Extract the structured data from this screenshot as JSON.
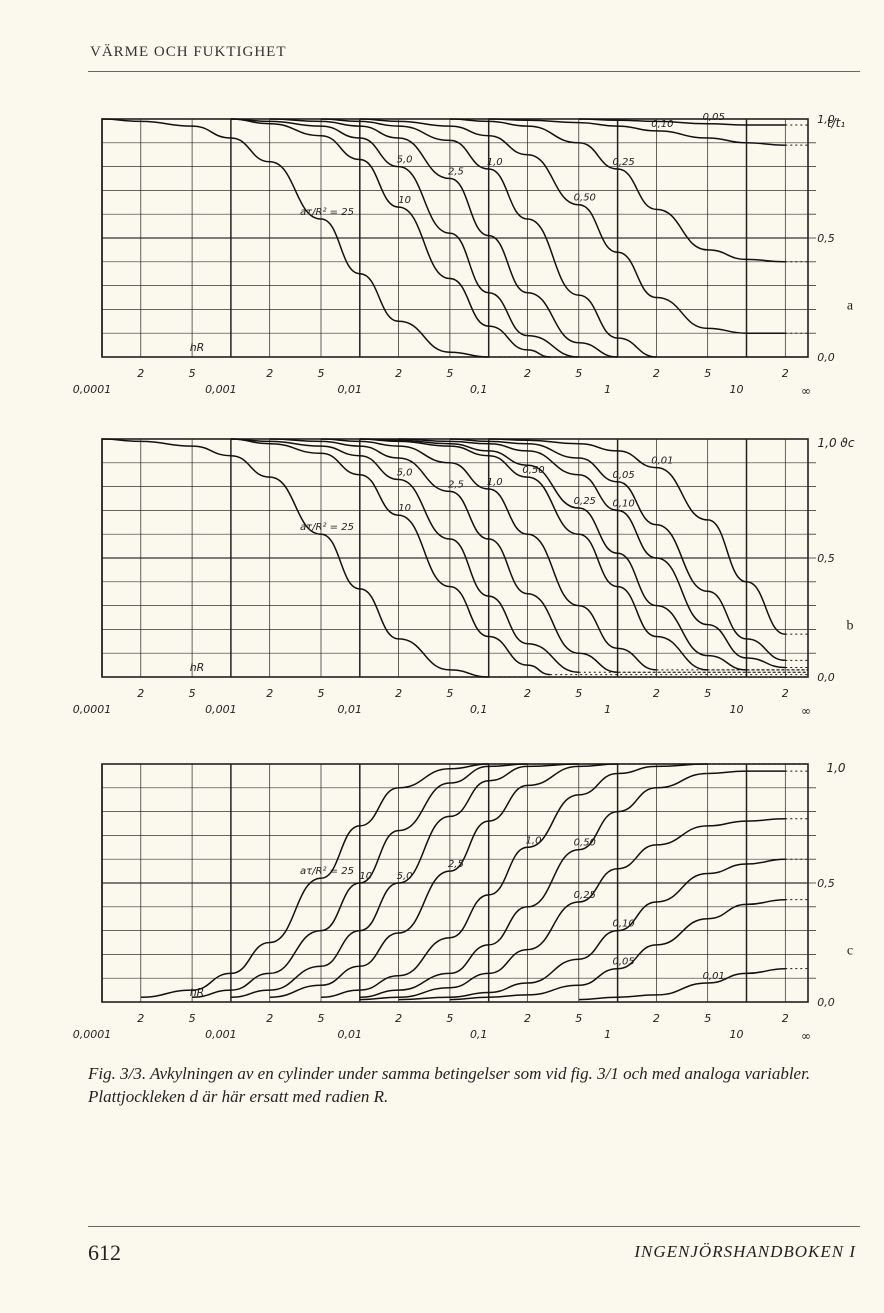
{
  "header": {
    "section": "VÄRME OCH FUKTIGHET"
  },
  "chart_data": [
    {
      "type": "line",
      "panel_label": "a",
      "y_axis_label": "t/t₁",
      "x_corner_label": "∞",
      "corner_label": "hR",
      "x_scale": "log",
      "x_decade_labels": [
        "0,0001",
        "0,001",
        "0,01",
        "0,1",
        "1",
        "10"
      ],
      "x_minor_labels": [
        "2",
        "5"
      ],
      "y_ticks": [
        "1,0",
        "0,5",
        "0,0"
      ],
      "ylim": [
        0,
        1
      ],
      "series": [
        {
          "name": "aτ/R² = 25",
          "label": "aτ/R² = 25",
          "x": [
            0.0001,
            0.0002,
            0.0005,
            0.001,
            0.002,
            0.005,
            0.01,
            0.02,
            0.05,
            0.1
          ],
          "values": [
            1.0,
            0.99,
            0.97,
            0.92,
            0.82,
            0.58,
            0.35,
            0.15,
            0.02,
            0.0
          ]
        },
        {
          "name": "10",
          "label": "10",
          "x": [
            0.001,
            0.002,
            0.005,
            0.01,
            0.02,
            0.05,
            0.1,
            0.2,
            0.3
          ],
          "values": [
            1.0,
            0.98,
            0.93,
            0.83,
            0.63,
            0.33,
            0.13,
            0.03,
            0.0
          ]
        },
        {
          "name": "5,0",
          "label": "5,0",
          "x": [
            0.001,
            0.002,
            0.005,
            0.01,
            0.02,
            0.05,
            0.1,
            0.2,
            0.5
          ],
          "values": [
            1.0,
            0.99,
            0.97,
            0.92,
            0.8,
            0.52,
            0.27,
            0.09,
            0.0
          ]
        },
        {
          "name": "2,5",
          "label": "2,5",
          "x": [
            0.002,
            0.005,
            0.01,
            0.02,
            0.05,
            0.1,
            0.2,
            0.5,
            1
          ],
          "values": [
            1.0,
            0.99,
            0.97,
            0.92,
            0.75,
            0.51,
            0.27,
            0.06,
            0.0
          ]
        },
        {
          "name": "1,0",
          "label": "1,0",
          "x": [
            0.005,
            0.01,
            0.02,
            0.05,
            0.1,
            0.2,
            0.5,
            1,
            2
          ],
          "values": [
            1.0,
            0.99,
            0.97,
            0.91,
            0.79,
            0.58,
            0.26,
            0.08,
            0.0
          ]
        },
        {
          "name": "0,50",
          "label": "0,50",
          "x": [
            0.01,
            0.02,
            0.05,
            0.1,
            0.2,
            0.5,
            1,
            2,
            5,
            10,
            20
          ],
          "values": [
            1.0,
            0.99,
            0.97,
            0.93,
            0.85,
            0.64,
            0.44,
            0.25,
            0.12,
            0.1,
            0.1
          ]
        },
        {
          "name": "0,25",
          "label": "0,25",
          "x": [
            0.05,
            0.1,
            0.2,
            0.5,
            1,
            2,
            5,
            10,
            20
          ],
          "values": [
            1.0,
            0.99,
            0.97,
            0.9,
            0.79,
            0.62,
            0.45,
            0.41,
            0.4
          ]
        },
        {
          "name": "0,10",
          "label": "0,10",
          "x": [
            0.1,
            0.2,
            0.5,
            1,
            2,
            5,
            10,
            20
          ],
          "values": [
            1.0,
            0.995,
            0.985,
            0.97,
            0.95,
            0.92,
            0.9,
            0.89
          ]
        },
        {
          "name": "0,05",
          "label": "0,05",
          "x": [
            0.5,
            1,
            2,
            5,
            10,
            20
          ],
          "values": [
            1.0,
            0.995,
            0.99,
            0.98,
            0.975,
            0.975
          ]
        }
      ]
    },
    {
      "type": "line",
      "panel_label": "b",
      "y_axis_label": "1,0 ϑc",
      "x_corner_label": "∞",
      "corner_label": "hR",
      "x_scale": "log",
      "x_decade_labels": [
        "0,0001",
        "0,001",
        "0,01",
        "0,1",
        "1",
        "10"
      ],
      "x_minor_labels": [
        "2",
        "5"
      ],
      "y_ticks": [
        "0,5",
        "0,0"
      ],
      "ylim": [
        0,
        1
      ],
      "series": [
        {
          "name": "aτ/R² = 25",
          "label": "aτ/R² = 25",
          "x": [
            0.0001,
            0.0002,
            0.0005,
            0.001,
            0.002,
            0.005,
            0.01,
            0.02,
            0.05,
            0.1
          ],
          "values": [
            1.0,
            0.99,
            0.97,
            0.93,
            0.84,
            0.6,
            0.37,
            0.16,
            0.03,
            0.0
          ]
        },
        {
          "name": "10",
          "label": "10",
          "x": [
            0.001,
            0.002,
            0.005,
            0.01,
            0.02,
            0.05,
            0.1,
            0.2,
            0.3
          ],
          "values": [
            1.0,
            0.98,
            0.94,
            0.85,
            0.68,
            0.38,
            0.17,
            0.05,
            0.01
          ]
        },
        {
          "name": "5,0",
          "label": "5,0",
          "x": [
            0.001,
            0.002,
            0.005,
            0.01,
            0.02,
            0.05,
            0.1,
            0.2,
            0.5
          ],
          "values": [
            1.0,
            0.99,
            0.97,
            0.93,
            0.83,
            0.58,
            0.34,
            0.14,
            0.02
          ]
        },
        {
          "name": "2,5",
          "label": "2,5",
          "x": [
            0.002,
            0.005,
            0.01,
            0.02,
            0.05,
            0.1,
            0.2,
            0.5,
            1
          ],
          "values": [
            1.0,
            0.99,
            0.97,
            0.92,
            0.78,
            0.58,
            0.35,
            0.1,
            0.02
          ]
        },
        {
          "name": "1,0",
          "label": "1,0",
          "x": [
            0.005,
            0.01,
            0.02,
            0.05,
            0.1,
            0.2,
            0.5,
            1,
            2
          ],
          "values": [
            1.0,
            0.99,
            0.97,
            0.9,
            0.79,
            0.6,
            0.3,
            0.12,
            0.03
          ]
        },
        {
          "name": "0,50",
          "label": "0,50",
          "x": [
            0.01,
            0.02,
            0.05,
            0.1,
            0.2,
            0.5,
            1,
            2,
            5
          ],
          "values": [
            1.0,
            0.99,
            0.97,
            0.93,
            0.84,
            0.6,
            0.38,
            0.17,
            0.03
          ]
        },
        {
          "name": "0,25",
          "label": "0,25",
          "x": [
            0.01,
            0.02,
            0.05,
            0.1,
            0.2,
            0.5,
            1,
            2,
            5,
            10
          ],
          "values": [
            1.0,
            0.995,
            0.98,
            0.95,
            0.89,
            0.71,
            0.52,
            0.3,
            0.09,
            0.03
          ]
        },
        {
          "name": "0,10",
          "label": "0,10",
          "x": [
            0.02,
            0.05,
            0.1,
            0.2,
            0.5,
            1,
            2,
            5,
            10,
            20
          ],
          "values": [
            1.0,
            0.99,
            0.98,
            0.95,
            0.85,
            0.7,
            0.5,
            0.22,
            0.08,
            0.04
          ]
        },
        {
          "name": "0,05",
          "label": "0,05",
          "x": [
            0.05,
            0.1,
            0.2,
            0.5,
            1,
            2,
            5,
            10,
            20
          ],
          "values": [
            1.0,
            0.99,
            0.98,
            0.92,
            0.82,
            0.64,
            0.36,
            0.16,
            0.07
          ]
        },
        {
          "name": "0,01",
          "label": "0,01",
          "x": [
            0.1,
            0.2,
            0.5,
            1,
            2,
            5,
            10,
            20
          ],
          "values": [
            1.0,
            0.995,
            0.98,
            0.95,
            0.88,
            0.66,
            0.4,
            0.18
          ]
        }
      ]
    },
    {
      "type": "line",
      "panel_label": "c",
      "y_axis_label": "1,0",
      "x_corner_label": "∞",
      "corner_label": "hR",
      "x_scale": "log",
      "x_decade_labels": [
        "0,0001",
        "0,001",
        "0,01",
        "0,1",
        "1",
        "10"
      ],
      "x_minor_labels": [
        "2",
        "5"
      ],
      "y_ticks": [
        "0,5",
        "0,0"
      ],
      "ylim": [
        0,
        1
      ],
      "series": [
        {
          "name": "aτ/R² = 25",
          "label": "aτ/R² = 25",
          "x": [
            0.0002,
            0.0005,
            0.001,
            0.002,
            0.005,
            0.01,
            0.02,
            0.05,
            0.1
          ],
          "values": [
            0.02,
            0.05,
            0.12,
            0.25,
            0.52,
            0.74,
            0.9,
            0.98,
            1.0
          ]
        },
        {
          "name": "10",
          "label": "10",
          "x": [
            0.0005,
            0.001,
            0.002,
            0.005,
            0.01,
            0.02,
            0.05,
            0.1,
            0.2
          ],
          "values": [
            0.02,
            0.05,
            0.12,
            0.3,
            0.5,
            0.72,
            0.92,
            0.99,
            1.0
          ]
        },
        {
          "name": "5,0",
          "label": "5,0",
          "x": [
            0.001,
            0.002,
            0.005,
            0.01,
            0.02,
            0.05,
            0.1,
            0.2,
            0.5
          ],
          "values": [
            0.02,
            0.05,
            0.15,
            0.3,
            0.5,
            0.78,
            0.93,
            0.99,
            1.0
          ]
        },
        {
          "name": "2,5",
          "label": "2,5",
          "x": [
            0.002,
            0.005,
            0.01,
            0.02,
            0.05,
            0.1,
            0.2,
            0.5,
            1
          ],
          "values": [
            0.02,
            0.07,
            0.15,
            0.29,
            0.55,
            0.76,
            0.91,
            0.99,
            1.0
          ]
        },
        {
          "name": "1,0",
          "label": "1,0",
          "x": [
            0.005,
            0.01,
            0.02,
            0.05,
            0.1,
            0.2,
            0.5,
            1,
            2,
            5
          ],
          "values": [
            0.02,
            0.05,
            0.11,
            0.27,
            0.45,
            0.65,
            0.87,
            0.96,
            0.99,
            1.0
          ]
        },
        {
          "name": "0,50",
          "label": "0,50",
          "x": [
            0.01,
            0.02,
            0.05,
            0.1,
            0.2,
            0.5,
            1,
            2,
            5,
            10,
            20
          ],
          "values": [
            0.02,
            0.05,
            0.12,
            0.24,
            0.4,
            0.64,
            0.8,
            0.9,
            0.96,
            0.97,
            0.97
          ]
        },
        {
          "name": "0,25",
          "label": "0,25",
          "x": [
            0.01,
            0.02,
            0.05,
            0.1,
            0.2,
            0.5,
            1,
            2,
            5,
            10,
            20
          ],
          "values": [
            0.01,
            0.02,
            0.06,
            0.12,
            0.22,
            0.42,
            0.56,
            0.66,
            0.74,
            0.76,
            0.77
          ]
        },
        {
          "name": "0,10",
          "label": "0,10",
          "x": [
            0.02,
            0.05,
            0.1,
            0.2,
            0.5,
            1,
            2,
            5,
            10,
            20
          ],
          "values": [
            0.01,
            0.02,
            0.04,
            0.08,
            0.18,
            0.3,
            0.42,
            0.54,
            0.58,
            0.6
          ]
        },
        {
          "name": "0,05",
          "label": "0,05",
          "x": [
            0.05,
            0.1,
            0.2,
            0.5,
            1,
            2,
            5,
            10,
            20
          ],
          "values": [
            0.01,
            0.02,
            0.03,
            0.07,
            0.14,
            0.24,
            0.35,
            0.41,
            0.43
          ]
        },
        {
          "name": "0,01",
          "label": "0,01",
          "x": [
            0.5,
            1,
            2,
            5,
            10,
            20
          ],
          "values": [
            0.01,
            0.02,
            0.03,
            0.08,
            0.12,
            0.14
          ]
        }
      ]
    }
  ],
  "caption": {
    "lead": "Fig. 3/3.",
    "text": "Avkylningen av en cylinder under samma betingelser som vid fig. 3/1 och med analoga variabler. Plattjockleken d är här ersatt med radien R."
  },
  "footer": {
    "page": "612",
    "book": "INGENJÖRSHANDBOKEN I"
  }
}
